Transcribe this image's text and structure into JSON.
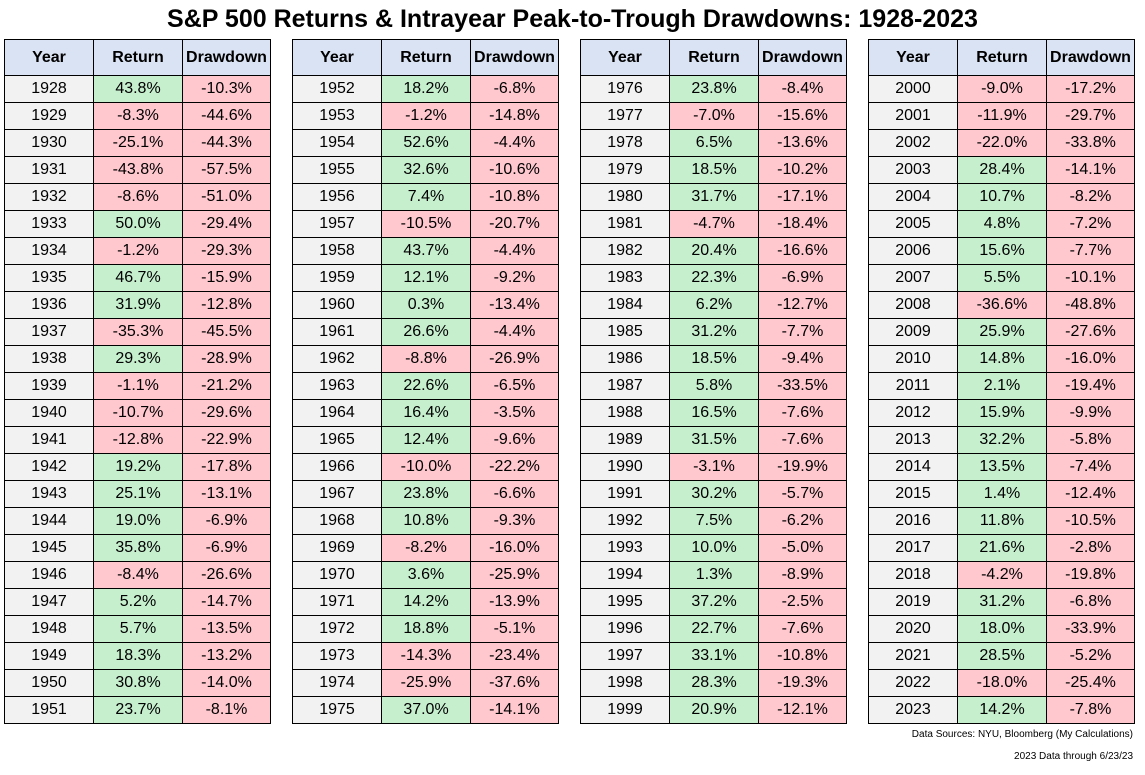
{
  "title": "S&P 500 Returns & Intrayear Peak-to-Trough Drawdowns: 1928-2023",
  "headers": {
    "year": "Year",
    "return": "Return",
    "drawdown": "Drawdown"
  },
  "colors": {
    "header_bg": "#dae3f3",
    "positive_bg": "#c6efce",
    "negative_bg": "#ffc7ce",
    "year_bg": "#f2f2f2"
  },
  "footnotes": {
    "sources": "Data Sources: NYU, Bloomberg (My Calculations)",
    "through": "2023 Data through 6/23/23"
  },
  "chart_data": {
    "type": "table",
    "title": "S&P 500 Returns & Intrayear Peak-to-Trough Drawdowns: 1928-2023",
    "columns": [
      "Year",
      "Return",
      "Drawdown"
    ],
    "rows": [
      [
        "1928",
        "43.8%",
        "-10.3%"
      ],
      [
        "1929",
        "-8.3%",
        "-44.6%"
      ],
      [
        "1930",
        "-25.1%",
        "-44.3%"
      ],
      [
        "1931",
        "-43.8%",
        "-57.5%"
      ],
      [
        "1932",
        "-8.6%",
        "-51.0%"
      ],
      [
        "1933",
        "50.0%",
        "-29.4%"
      ],
      [
        "1934",
        "-1.2%",
        "-29.3%"
      ],
      [
        "1935",
        "46.7%",
        "-15.9%"
      ],
      [
        "1936",
        "31.9%",
        "-12.8%"
      ],
      [
        "1937",
        "-35.3%",
        "-45.5%"
      ],
      [
        "1938",
        "29.3%",
        "-28.9%"
      ],
      [
        "1939",
        "-1.1%",
        "-21.2%"
      ],
      [
        "1940",
        "-10.7%",
        "-29.6%"
      ],
      [
        "1941",
        "-12.8%",
        "-22.9%"
      ],
      [
        "1942",
        "19.2%",
        "-17.8%"
      ],
      [
        "1943",
        "25.1%",
        "-13.1%"
      ],
      [
        "1944",
        "19.0%",
        "-6.9%"
      ],
      [
        "1945",
        "35.8%",
        "-6.9%"
      ],
      [
        "1946",
        "-8.4%",
        "-26.6%"
      ],
      [
        "1947",
        "5.2%",
        "-14.7%"
      ],
      [
        "1948",
        "5.7%",
        "-13.5%"
      ],
      [
        "1949",
        "18.3%",
        "-13.2%"
      ],
      [
        "1950",
        "30.8%",
        "-14.0%"
      ],
      [
        "1951",
        "23.7%",
        "-8.1%"
      ],
      [
        "1952",
        "18.2%",
        "-6.8%"
      ],
      [
        "1953",
        "-1.2%",
        "-14.8%"
      ],
      [
        "1954",
        "52.6%",
        "-4.4%"
      ],
      [
        "1955",
        "32.6%",
        "-10.6%"
      ],
      [
        "1956",
        "7.4%",
        "-10.8%"
      ],
      [
        "1957",
        "-10.5%",
        "-20.7%"
      ],
      [
        "1958",
        "43.7%",
        "-4.4%"
      ],
      [
        "1959",
        "12.1%",
        "-9.2%"
      ],
      [
        "1960",
        "0.3%",
        "-13.4%"
      ],
      [
        "1961",
        "26.6%",
        "-4.4%"
      ],
      [
        "1962",
        "-8.8%",
        "-26.9%"
      ],
      [
        "1963",
        "22.6%",
        "-6.5%"
      ],
      [
        "1964",
        "16.4%",
        "-3.5%"
      ],
      [
        "1965",
        "12.4%",
        "-9.6%"
      ],
      [
        "1966",
        "-10.0%",
        "-22.2%"
      ],
      [
        "1967",
        "23.8%",
        "-6.6%"
      ],
      [
        "1968",
        "10.8%",
        "-9.3%"
      ],
      [
        "1969",
        "-8.2%",
        "-16.0%"
      ],
      [
        "1970",
        "3.6%",
        "-25.9%"
      ],
      [
        "1971",
        "14.2%",
        "-13.9%"
      ],
      [
        "1972",
        "18.8%",
        "-5.1%"
      ],
      [
        "1973",
        "-14.3%",
        "-23.4%"
      ],
      [
        "1974",
        "-25.9%",
        "-37.6%"
      ],
      [
        "1975",
        "37.0%",
        "-14.1%"
      ],
      [
        "1976",
        "23.8%",
        "-8.4%"
      ],
      [
        "1977",
        "-7.0%",
        "-15.6%"
      ],
      [
        "1978",
        "6.5%",
        "-13.6%"
      ],
      [
        "1979",
        "18.5%",
        "-10.2%"
      ],
      [
        "1980",
        "31.7%",
        "-17.1%"
      ],
      [
        "1981",
        "-4.7%",
        "-18.4%"
      ],
      [
        "1982",
        "20.4%",
        "-16.6%"
      ],
      [
        "1983",
        "22.3%",
        "-6.9%"
      ],
      [
        "1984",
        "6.2%",
        "-12.7%"
      ],
      [
        "1985",
        "31.2%",
        "-7.7%"
      ],
      [
        "1986",
        "18.5%",
        "-9.4%"
      ],
      [
        "1987",
        "5.8%",
        "-33.5%"
      ],
      [
        "1988",
        "16.5%",
        "-7.6%"
      ],
      [
        "1989",
        "31.5%",
        "-7.6%"
      ],
      [
        "1990",
        "-3.1%",
        "-19.9%"
      ],
      [
        "1991",
        "30.2%",
        "-5.7%"
      ],
      [
        "1992",
        "7.5%",
        "-6.2%"
      ],
      [
        "1993",
        "10.0%",
        "-5.0%"
      ],
      [
        "1994",
        "1.3%",
        "-8.9%"
      ],
      [
        "1995",
        "37.2%",
        "-2.5%"
      ],
      [
        "1996",
        "22.7%",
        "-7.6%"
      ],
      [
        "1997",
        "33.1%",
        "-10.8%"
      ],
      [
        "1998",
        "28.3%",
        "-19.3%"
      ],
      [
        "1999",
        "20.9%",
        "-12.1%"
      ],
      [
        "2000",
        "-9.0%",
        "-17.2%"
      ],
      [
        "2001",
        "-11.9%",
        "-29.7%"
      ],
      [
        "2002",
        "-22.0%",
        "-33.8%"
      ],
      [
        "2003",
        "28.4%",
        "-14.1%"
      ],
      [
        "2004",
        "10.7%",
        "-8.2%"
      ],
      [
        "2005",
        "4.8%",
        "-7.2%"
      ],
      [
        "2006",
        "15.6%",
        "-7.7%"
      ],
      [
        "2007",
        "5.5%",
        "-10.1%"
      ],
      [
        "2008",
        "-36.6%",
        "-48.8%"
      ],
      [
        "2009",
        "25.9%",
        "-27.6%"
      ],
      [
        "2010",
        "14.8%",
        "-16.0%"
      ],
      [
        "2011",
        "2.1%",
        "-19.4%"
      ],
      [
        "2012",
        "15.9%",
        "-9.9%"
      ],
      [
        "2013",
        "32.2%",
        "-5.8%"
      ],
      [
        "2014",
        "13.5%",
        "-7.4%"
      ],
      [
        "2015",
        "1.4%",
        "-12.4%"
      ],
      [
        "2016",
        "11.8%",
        "-10.5%"
      ],
      [
        "2017",
        "21.6%",
        "-2.8%"
      ],
      [
        "2018",
        "-4.2%",
        "-19.8%"
      ],
      [
        "2019",
        "31.2%",
        "-6.8%"
      ],
      [
        "2020",
        "18.0%",
        "-33.9%"
      ],
      [
        "2021",
        "28.5%",
        "-5.2%"
      ],
      [
        "2022",
        "-18.0%",
        "-25.4%"
      ],
      [
        "2023",
        "14.2%",
        "-7.8%"
      ]
    ]
  }
}
